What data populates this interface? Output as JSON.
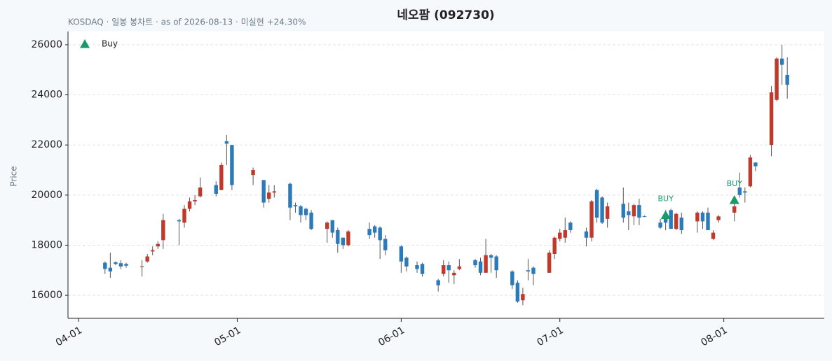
{
  "chart_data": {
    "type": "candlestick",
    "title": "네오팜 (092730)",
    "subtitle": "KOSDAQ · 일봉 봉차트 · as of 2026-08-13 · 미실현 +24.30%",
    "y_label": "Price",
    "up_color": "#c0392b",
    "down_color": "#2b7bba",
    "wick_color": "#555555",
    "x": [
      "2026-04-06",
      "2026-04-07",
      "2026-04-08",
      "2026-04-09",
      "2026-04-10",
      "2026-04-13",
      "2026-04-14",
      "2026-04-15",
      "2026-04-16",
      "2026-04-17",
      "2026-04-20",
      "2026-04-21",
      "2026-04-22",
      "2026-04-23",
      "2026-04-24",
      "2026-04-27",
      "2026-04-28",
      "2026-04-29",
      "2026-04-30",
      "2026-05-04",
      "2026-05-06",
      "2026-05-07",
      "2026-05-08",
      "2026-05-11",
      "2026-05-12",
      "2026-05-13",
      "2026-05-14",
      "2026-05-15",
      "2026-05-18",
      "2026-05-19",
      "2026-05-20",
      "2026-05-21",
      "2026-05-22",
      "2026-05-26",
      "2026-05-27",
      "2026-05-28",
      "2026-05-29",
      "2026-06-01",
      "2026-06-02",
      "2026-06-04",
      "2026-06-05",
      "2026-06-08",
      "2026-06-09",
      "2026-06-10",
      "2026-06-11",
      "2026-06-12",
      "2026-06-15",
      "2026-06-16",
      "2026-06-17",
      "2026-06-18",
      "2026-06-19",
      "2026-06-22",
      "2026-06-23",
      "2026-06-24",
      "2026-06-25",
      "2026-06-26",
      "2026-06-29",
      "2026-06-30",
      "2026-07-01",
      "2026-07-02",
      "2026-07-03",
      "2026-07-06",
      "2026-07-07",
      "2026-07-08",
      "2026-07-09",
      "2026-07-10",
      "2026-07-13",
      "2026-07-14",
      "2026-07-15",
      "2026-07-16",
      "2026-07-17",
      "2026-07-20",
      "2026-07-21",
      "2026-07-22",
      "2026-07-23",
      "2026-07-24",
      "2026-07-27",
      "2026-07-28",
      "2026-07-29",
      "2026-07-30",
      "2026-07-31",
      "2026-08-03",
      "2026-08-04",
      "2026-08-05",
      "2026-08-06",
      "2026-08-07",
      "2026-08-10",
      "2026-08-11",
      "2026-08-12",
      "2026-08-13"
    ],
    "open": [
      17300,
      17100,
      17320,
      17280,
      17250,
      17130,
      17350,
      17750,
      17950,
      18200,
      19000,
      18900,
      19450,
      19750,
      19950,
      20400,
      20200,
      22150,
      22000,
      20800,
      20600,
      19850,
      20100,
      20450,
      19600,
      19550,
      19450,
      19300,
      18650,
      19000,
      18600,
      18300,
      18000,
      18650,
      18750,
      18700,
      18250,
      17950,
      17500,
      17200,
      17250,
      16600,
      16850,
      17200,
      16800,
      17050,
      17400,
      17350,
      16900,
      17600,
      17550,
      16950,
      16500,
      15800,
      17000,
      17100,
      16900,
      17650,
      18250,
      18300,
      18900,
      18550,
      18300,
      20200,
      19900,
      19050,
      19650,
      19350,
      19150,
      19600,
      19160,
      18900,
      19050,
      19400,
      18650,
      19100,
      18950,
      19300,
      19300,
      18250,
      19000,
      19300,
      20300,
      20150,
      20350,
      21300,
      22000,
      23800,
      25450,
      24800
    ],
    "high": [
      17350,
      17700,
      17350,
      17400,
      17300,
      17400,
      17650,
      17950,
      18150,
      19250,
      19050,
      19600,
      19900,
      20000,
      20700,
      20550,
      21300,
      22400,
      22000,
      21100,
      20600,
      20400,
      20400,
      20500,
      19700,
      19600,
      19500,
      19400,
      18950,
      19000,
      18700,
      18300,
      18600,
      18900,
      18800,
      18750,
      18400,
      18000,
      17550,
      17350,
      17300,
      16650,
      17400,
      17350,
      17000,
      17450,
      17450,
      17500,
      18250,
      17650,
      17600,
      17000,
      16600,
      16300,
      17450,
      17150,
      17800,
      18350,
      18650,
      19100,
      18950,
      18700,
      19800,
      20250,
      19950,
      19700,
      20300,
      19700,
      19650,
      19850,
      19180,
      19050,
      19400,
      19450,
      19300,
      19300,
      19350,
      19350,
      19500,
      18600,
      19200,
      19900,
      20900,
      20300,
      21600,
      21300,
      24350,
      25500,
      26000,
      25500
    ],
    "low": [
      16850,
      16700,
      17200,
      17050,
      17100,
      16750,
      17300,
      17600,
      17850,
      17850,
      18000,
      18700,
      19350,
      19600,
      19900,
      19950,
      20200,
      21200,
      20200,
      20400,
      19500,
      19700,
      19900,
      19000,
      19300,
      18900,
      19000,
      18600,
      18100,
      18300,
      17700,
      17850,
      17950,
      18250,
      18300,
      17450,
      17600,
      16900,
      16950,
      16900,
      16750,
      16150,
      16750,
      16500,
      16450,
      17000,
      17100,
      16800,
      16900,
      16900,
      16700,
      16250,
      15700,
      15600,
      16600,
      16400,
      16900,
      17450,
      18150,
      18100,
      18500,
      17950,
      18150,
      18900,
      18850,
      18700,
      18900,
      18600,
      18800,
      18800,
      19120,
      18650,
      18600,
      18650,
      18600,
      18450,
      18500,
      18650,
      18600,
      18200,
      18900,
      18950,
      19900,
      19700,
      20300,
      20950,
      21550,
      23750,
      24400,
      23850
    ],
    "close": [
      17050,
      16950,
      17250,
      17150,
      17180,
      17160,
      17550,
      17800,
      18050,
      19000,
      18950,
      19450,
      19750,
      19800,
      20300,
      20050,
      21200,
      22050,
      20400,
      21000,
      19700,
      20100,
      20150,
      19500,
      19550,
      19200,
      19200,
      18650,
      18900,
      18500,
      18050,
      18000,
      18550,
      18400,
      18500,
      18200,
      17800,
      17350,
      17150,
      17050,
      16850,
      16400,
      17200,
      17000,
      16900,
      17150,
      17200,
      16900,
      17600,
      17500,
      17000,
      16400,
      15750,
      16050,
      16950,
      16850,
      17700,
      18300,
      18500,
      18600,
      18600,
      18300,
      19750,
      19100,
      18900,
      19550,
      19100,
      19200,
      19600,
      19100,
      19140,
      18700,
      18900,
      18650,
      19250,
      18600,
      19300,
      18950,
      18600,
      18500,
      19150,
      19550,
      20000,
      20100,
      21500,
      21150,
      24100,
      25450,
      25200,
      24400
    ],
    "signals": {
      "name": "Buy",
      "color": "#1a9a6a",
      "x": [
        "2026-07-21",
        "2026-08-03"
      ],
      "values": [
        19200,
        19800
      ],
      "labels": [
        "BUY",
        "BUY"
      ]
    },
    "legend": "upper left",
    "xlim": [
      "2026-03-30",
      "2026-08-20"
    ],
    "xticks": [
      {
        "value": "2026-04-01",
        "label": "04-01"
      },
      {
        "value": "2026-05-01",
        "label": "05-01"
      },
      {
        "value": "2026-06-01",
        "label": "06-01"
      },
      {
        "value": "2026-07-01",
        "label": "07-01"
      },
      {
        "value": "2026-08-01",
        "label": "08-01"
      }
    ],
    "ylim": [
      15080,
      26530
    ],
    "yticks": [
      16000,
      18000,
      20000,
      22000,
      24000,
      26000
    ],
    "grid": true
  }
}
